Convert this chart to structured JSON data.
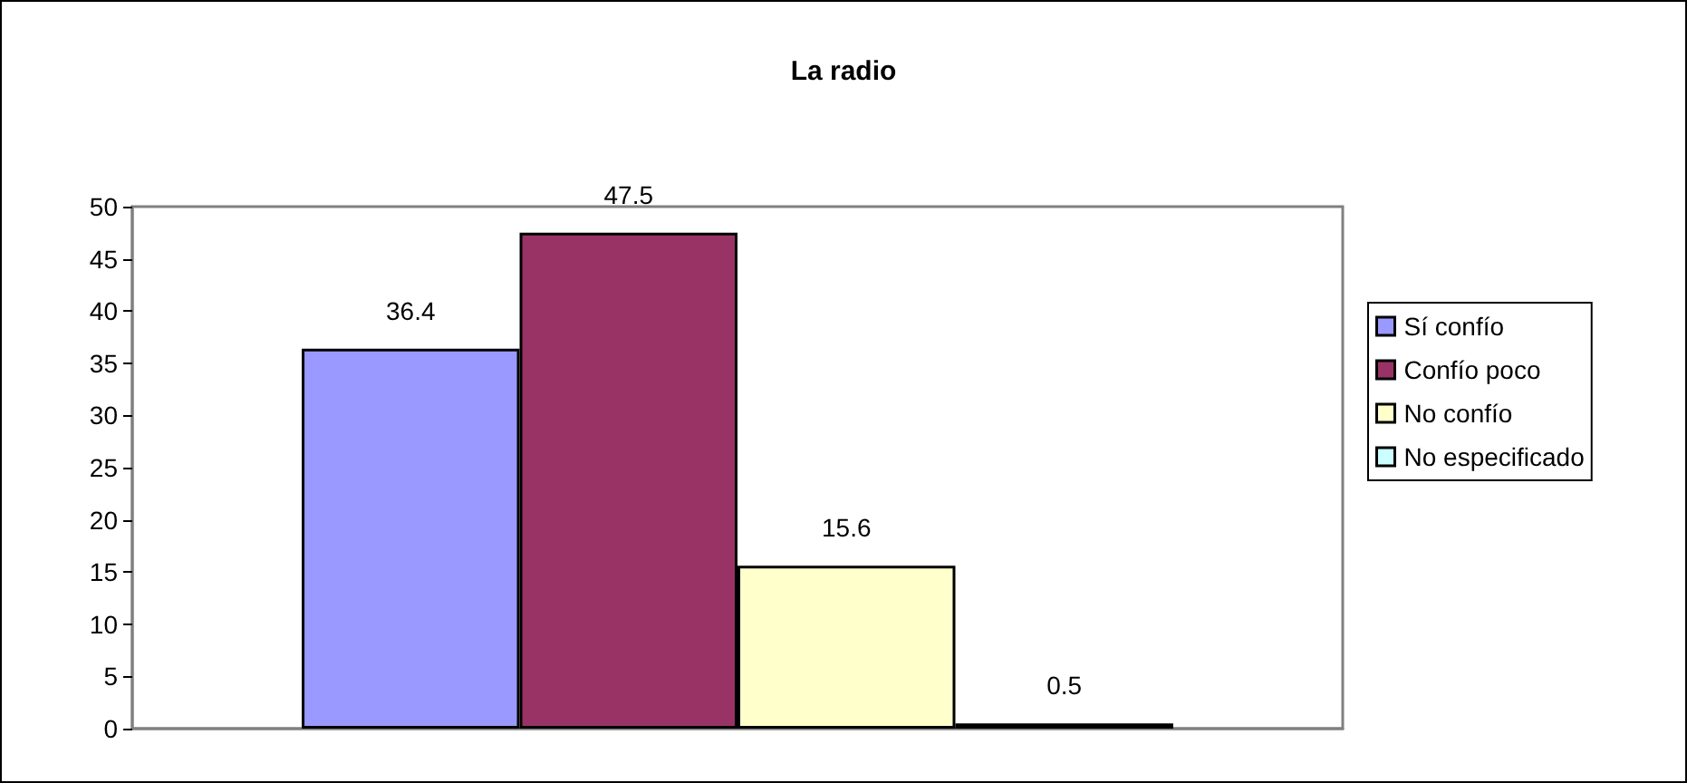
{
  "chart_data": {
    "type": "bar",
    "title": "La radio",
    "categories": [
      null
    ],
    "series": [
      {
        "name": "Sí confío",
        "color": "#9999ff",
        "values": [
          36.4
        ]
      },
      {
        "name": "Confío poco",
        "color": "#993366",
        "values": [
          47.5
        ]
      },
      {
        "name": "No confío",
        "color": "#ffffcc",
        "values": [
          15.6
        ]
      },
      {
        "name": "No especificado",
        "color": "#ccffff",
        "values": [
          0.5
        ]
      }
    ],
    "ylim": [
      0,
      50
    ],
    "yticks": [
      0,
      5,
      10,
      15,
      20,
      25,
      30,
      35,
      40,
      45,
      50
    ],
    "grid": false,
    "legend": "right",
    "data_labels": true
  }
}
